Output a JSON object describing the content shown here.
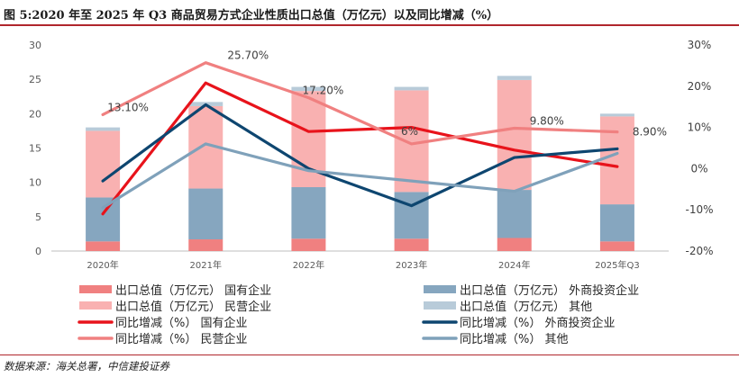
{
  "header": {
    "title": "图 5:2020 年至 2025 年 Q3 商品贸易方式企业性质出口总值（万亿元）以及同比增减（%）"
  },
  "footer": {
    "source": "数据来源：海关总署，中信建投证券"
  },
  "chart_data": {
    "type": "bar",
    "categories": [
      "2020年",
      "2021年",
      "2022年",
      "2023年",
      "2024年",
      "2025年Q3"
    ],
    "left_axis": {
      "ylim": [
        0,
        30
      ],
      "ticks": [
        "0",
        "5",
        "10",
        "15",
        "20",
        "25",
        "30"
      ]
    },
    "right_axis": {
      "ylim": [
        -20,
        30
      ],
      "ticks": [
        "-20%",
        "-10%",
        "0%",
        "10%",
        "20%",
        "30%"
      ]
    },
    "bar_series": [
      {
        "name": "出口总值（万亿元） 国有企业",
        "color": "#f08080",
        "values": [
          1.4,
          1.7,
          1.8,
          1.8,
          1.9,
          1.4
        ]
      },
      {
        "name": "出口总值（万亿元） 外商投资企业",
        "color": "#86a6bf",
        "values": [
          6.4,
          7.4,
          7.5,
          6.8,
          7.0,
          5.4
        ]
      },
      {
        "name": "出口总值（万亿元） 民营企业",
        "color": "#f9b1b1",
        "values": [
          9.7,
          12.0,
          14.0,
          14.8,
          16.0,
          12.8
        ]
      },
      {
        "name": "出口总值（万亿元） 其他",
        "color": "#b8cbd9",
        "values": [
          0.5,
          0.6,
          0.6,
          0.5,
          0.6,
          0.4
        ]
      }
    ],
    "line_series": [
      {
        "name": "同比增减（%） 国有企业",
        "color": "#e8131b",
        "values": [
          -11.0,
          20.8,
          9.0,
          10.0,
          4.5,
          0.5
        ]
      },
      {
        "name": "同比增减（%） 外商投资企业",
        "color": "#0e4670",
        "values": [
          -3.0,
          15.5,
          0.0,
          -9.0,
          2.7,
          4.8
        ]
      },
      {
        "name": "同比增减（%） 民营企业",
        "color": "#f08080",
        "values": [
          13.1,
          25.7,
          17.2,
          6.0,
          9.8,
          8.9
        ]
      },
      {
        "name": "同比增减（%） 其他",
        "color": "#7fa1ba",
        "values": [
          -9.5,
          6.0,
          -0.5,
          -3.0,
          -5.5,
          3.7
        ]
      }
    ],
    "data_labels": [
      {
        "series": "同比增减（%） 民营企业",
        "category": "2020年",
        "text": "13.10%"
      },
      {
        "series": "同比增减（%） 民营企业",
        "category": "2021年",
        "text": "25.70%"
      },
      {
        "series": "同比增减（%） 民营企业",
        "category": "2022年",
        "text": "17.20%"
      },
      {
        "series": "同比增减（%） 民营企业",
        "category": "2023年",
        "text": "6%"
      },
      {
        "series": "同比增减（%） 民营企业",
        "category": "2024年",
        "text": "9.80%"
      },
      {
        "series": "同比增减（%） 民营企业",
        "category": "2025年Q3",
        "text": "8.90%"
      }
    ],
    "legend": {
      "placement": "bottom",
      "items": [
        {
          "text": "出口总值（万亿元） 国有企业",
          "kind": "bar",
          "color": "#f08080"
        },
        {
          "text": "出口总值（万亿元） 外商投资企业",
          "kind": "bar",
          "color": "#86a6bf"
        },
        {
          "text": "出口总值（万亿元） 民营企业",
          "kind": "bar",
          "color": "#f9b1b1"
        },
        {
          "text": "出口总值（万亿元） 其他",
          "kind": "bar",
          "color": "#b8cbd9"
        },
        {
          "text": "同比增减（%） 国有企业",
          "kind": "line",
          "color": "#e8131b"
        },
        {
          "text": "同比增减（%） 外商投资企业",
          "kind": "line",
          "color": "#0e4670"
        },
        {
          "text": "同比增减（%） 民营企业",
          "kind": "line",
          "color": "#f08080"
        },
        {
          "text": "同比增减（%） 其他",
          "kind": "line",
          "color": "#7fa1ba"
        }
      ]
    },
    "grid": false
  }
}
